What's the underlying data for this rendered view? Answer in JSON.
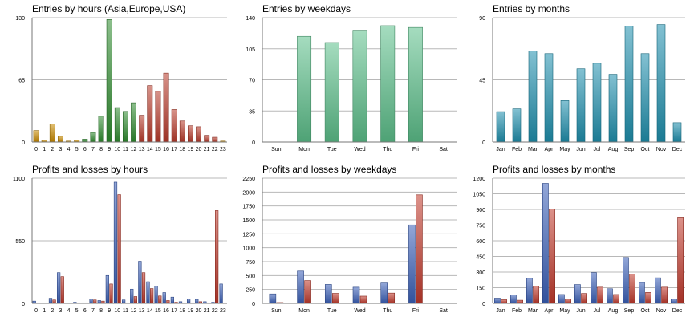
{
  "chart_data": [
    {
      "type": "bar",
      "title": "Entries by hours (Asia,Europe,USA)",
      "categories": [
        "0",
        "1",
        "2",
        "3",
        "4",
        "5",
        "6",
        "7",
        "8",
        "9",
        "10",
        "11",
        "12",
        "13",
        "14",
        "15",
        "16",
        "17",
        "18",
        "19",
        "20",
        "21",
        "22",
        "23"
      ],
      "values": [
        12,
        2,
        19,
        6,
        1,
        2,
        3,
        10,
        27,
        128,
        36,
        32,
        41,
        28,
        59,
        53,
        72,
        34,
        22,
        17,
        16,
        7,
        5,
        1
      ],
      "bar_colors": [
        "#c98a00",
        "#c98a00",
        "#c98a00",
        "#c98a00",
        "#c98a00",
        "#c98a00",
        "#2e8b2e",
        "#2e8b2e",
        "#2e8b2e",
        "#2e8b2e",
        "#2e8b2e",
        "#2e8b2e",
        "#2e8b2e",
        "#b83a2a",
        "#b83a2a",
        "#b83a2a",
        "#b83a2a",
        "#b83a2a",
        "#b83a2a",
        "#b83a2a",
        "#b83a2a",
        "#b83a2a",
        "#b83a2a",
        "#c98a00"
      ],
      "yticks": [
        0,
        65,
        130
      ],
      "ylim": [
        0,
        130
      ],
      "grid": true,
      "xlabel": "",
      "ylabel": ""
    },
    {
      "type": "bar",
      "title": "Entries by weekdays",
      "categories": [
        "Sun",
        "Mon",
        "Tue",
        "Wed",
        "Thu",
        "Fri",
        "Sat"
      ],
      "values": [
        0,
        119,
        112,
        125,
        131,
        129,
        0
      ],
      "bar_color": "#5cbf8a",
      "yticks": [
        0,
        35,
        70,
        105,
        140
      ],
      "ylim": [
        0,
        140
      ],
      "grid": true,
      "xlabel": "",
      "ylabel": ""
    },
    {
      "type": "bar",
      "title": "Entries by months",
      "categories": [
        "Jan",
        "Feb",
        "Mar",
        "Apr",
        "May",
        "Jun",
        "Jul",
        "Aug",
        "Sep",
        "Oct",
        "Nov",
        "Dec"
      ],
      "values": [
        22,
        24,
        66,
        64,
        30,
        53,
        57,
        49,
        84,
        64,
        85,
        14
      ],
      "bar_color": "#1e8fad",
      "yticks": [
        0,
        45,
        90
      ],
      "ylim": [
        0,
        90
      ],
      "grid": true,
      "xlabel": "",
      "ylabel": ""
    },
    {
      "type": "bar",
      "title": "Profits and losses by hours",
      "categories": [
        "0",
        "1",
        "2",
        "3",
        "4",
        "5",
        "6",
        "7",
        "8",
        "9",
        "10",
        "11",
        "12",
        "13",
        "14",
        "15",
        "16",
        "17",
        "18",
        "19",
        "20",
        "21",
        "22",
        "23"
      ],
      "series": [
        {
          "color": "#3a5fb8",
          "values": [
            20,
            0,
            45,
            270,
            0,
            10,
            5,
            40,
            25,
            245,
            1065,
            30,
            125,
            370,
            190,
            150,
            95,
            55,
            15,
            40,
            35,
            15,
            10,
            170
          ]
        },
        {
          "color": "#c0392b",
          "values": [
            5,
            0,
            30,
            235,
            0,
            5,
            5,
            30,
            20,
            170,
            955,
            5,
            60,
            270,
            130,
            65,
            25,
            10,
            5,
            5,
            15,
            5,
            815,
            5
          ]
        }
      ],
      "yticks": [
        0,
        550,
        1100
      ],
      "ylim": [
        0,
        1100
      ],
      "grid": true,
      "xlabel": "",
      "ylabel": ""
    },
    {
      "type": "bar",
      "title": "Profits and losses by weekdays",
      "categories": [
        "Sun",
        "Mon",
        "Tue",
        "Wed",
        "Thu",
        "Fri",
        "Sat"
      ],
      "series": [
        {
          "color": "#3a5fb8",
          "values": [
            170,
            580,
            340,
            290,
            365,
            1410,
            0
          ]
        },
        {
          "color": "#c0392b",
          "values": [
            15,
            410,
            180,
            130,
            185,
            1950,
            0
          ]
        }
      ],
      "yticks": [
        0,
        250,
        500,
        750,
        1000,
        1250,
        1500,
        1750,
        2000,
        2250
      ],
      "ylim": [
        0,
        2250
      ],
      "grid": true,
      "xlabel": "",
      "ylabel": ""
    },
    {
      "type": "bar",
      "title": "Profits and losses by months",
      "categories": [
        "Jan",
        "Feb",
        "Mar",
        "Apr",
        "May",
        "Jun",
        "Jul",
        "Aug",
        "Sep",
        "Oct",
        "Nov",
        "Dec"
      ],
      "series": [
        {
          "color": "#3a5fb8",
          "values": [
            50,
            80,
            240,
            1150,
            85,
            180,
            295,
            140,
            440,
            200,
            245,
            40
          ]
        },
        {
          "color": "#c0392b",
          "values": [
            35,
            30,
            165,
            905,
            40,
            95,
            155,
            85,
            280,
            105,
            155,
            820
          ]
        }
      ],
      "yticks": [
        0,
        150,
        300,
        450,
        600,
        750,
        900,
        1050,
        1200
      ],
      "ylim": [
        0,
        1200
      ],
      "grid": true,
      "xlabel": "",
      "ylabel": ""
    }
  ]
}
